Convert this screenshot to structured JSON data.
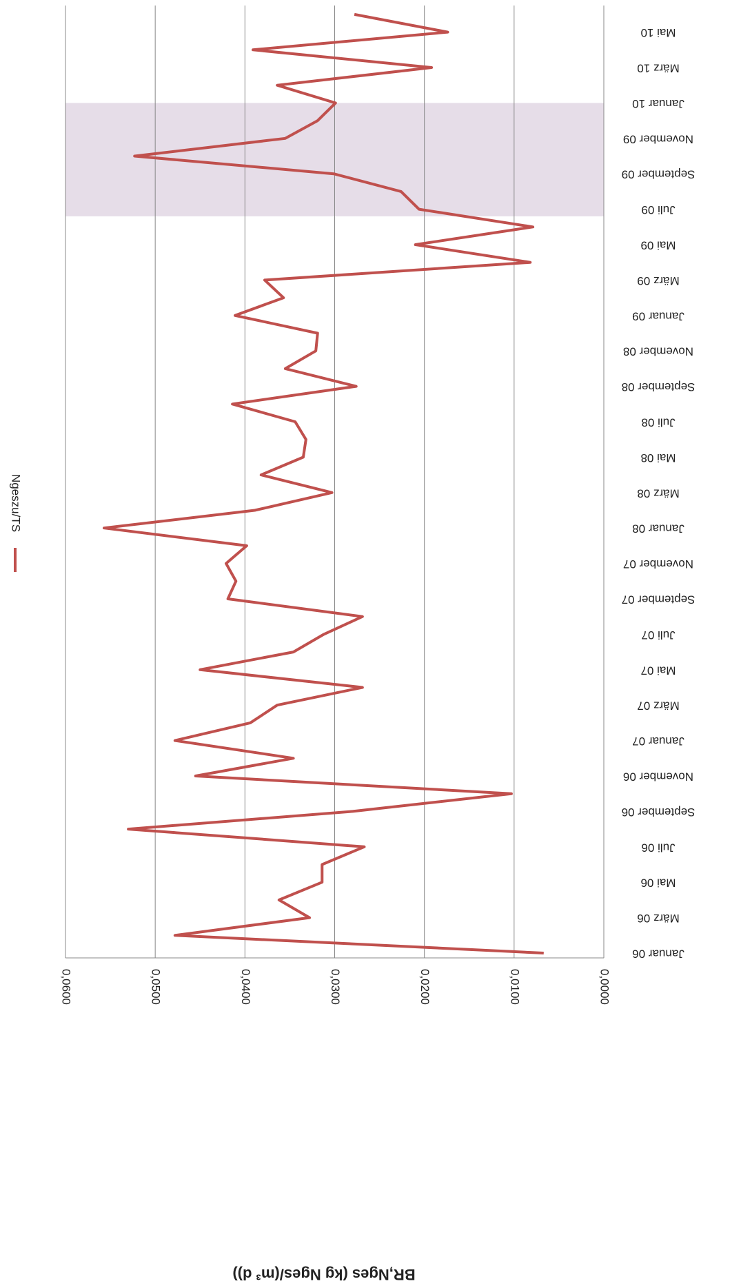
{
  "chart_data": {
    "type": "line",
    "ylabel": "BR,Nges (kg Nges/(m³ d))",
    "categories": [
      "Januar 06",
      null,
      "März 06",
      null,
      "Mai 06",
      null,
      "Juli 06",
      null,
      "September 06",
      null,
      "November 06",
      null,
      "Januar 07",
      null,
      "März 07",
      null,
      "Mai 07",
      null,
      "Juli 07",
      null,
      "September 07",
      null,
      "November 07",
      null,
      "Januar 08",
      null,
      "März 08",
      null,
      "Mai 08",
      null,
      "Juli 08",
      null,
      "September 08",
      null,
      "November 08",
      null,
      "Januar 09",
      null,
      "März 09",
      null,
      "Mai 09",
      null,
      "Juli 09",
      null,
      "September 09",
      null,
      "November 09",
      null,
      "Januar 10",
      null,
      "März 10",
      null,
      "Mai 10",
      null
    ],
    "series": [
      {
        "name": "Ngeszu/TS",
        "color": "#c0504d",
        "values": [
          0.0067,
          0.0478,
          0.0328,
          0.0362,
          0.0314,
          0.0314,
          0.0267,
          0.053,
          0.028,
          0.0103,
          0.0455,
          0.0346,
          0.0478,
          0.0394,
          0.0364,
          0.0269,
          0.045,
          0.0346,
          0.0312,
          0.0269,
          0.0419,
          0.041,
          0.0421,
          0.0398,
          0.0557,
          0.0389,
          0.0303,
          0.0382,
          0.0335,
          0.0332,
          0.0344,
          0.0414,
          0.0276,
          0.0355,
          0.0321,
          0.0319,
          0.0411,
          0.0357,
          0.0378,
          0.0082,
          0.021,
          0.0079,
          0.0206,
          0.0226,
          0.0301,
          0.0523,
          0.0355,
          0.0319,
          0.0299,
          0.0364,
          0.0192,
          0.0391,
          0.0174,
          0.0278
        ]
      }
    ],
    "highlight_range": [
      41.6,
      48
    ],
    "highlight_color": "#e6dde8",
    "ylim": [
      0,
      0.06
    ],
    "yticks": [
      {
        "value": 0,
        "label": "0,0000"
      },
      {
        "value": 0.01,
        "label": "0,0100"
      },
      {
        "value": 0.02,
        "label": "0,0200"
      },
      {
        "value": 0.03,
        "label": "0,0300"
      },
      {
        "value": 0.04,
        "label": "0,0400"
      },
      {
        "value": 0.05,
        "label": "0,0500"
      },
      {
        "value": 0.06,
        "label": "0,0600"
      }
    ],
    "grid": true
  }
}
